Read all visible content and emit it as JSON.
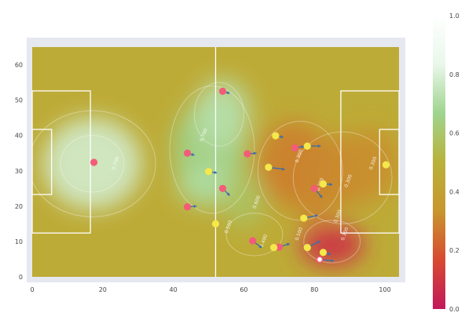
{
  "chart_data": {
    "type": "scatter",
    "title": "",
    "xlabel": "",
    "ylabel": "",
    "xlim": [
      -2,
      104
    ],
    "ylim": [
      -2,
      67
    ],
    "x_ticks": [
      "0",
      "20",
      "40",
      "60",
      "80",
      "100"
    ],
    "x_tick_values": [
      0,
      20,
      40,
      60,
      80,
      100
    ],
    "y_ticks": [
      "0",
      "10",
      "20",
      "30",
      "40",
      "50",
      "60"
    ],
    "y_tick_values": [
      0,
      10,
      20,
      30,
      40,
      50,
      60
    ],
    "pitch": {
      "length": 104,
      "width": 65,
      "halfway_x": 52,
      "penalty_box_depth": 16.5,
      "penalty_box_y": [
        12.4,
        52.6
      ],
      "goal_area_depth": 5.5,
      "goal_area_y": [
        23.3,
        41.7
      ],
      "line_color": "#ffffff"
    },
    "heatmap": {
      "colorscale": [
        "#c2185b",
        "#d84a32",
        "#c8962e",
        "#b9b23a",
        "#9fd48e",
        "#e9f7ea",
        "#ffffff"
      ],
      "cmin": 0,
      "cmax": 1,
      "background_value": 0.46,
      "colorbar_ticks": [
        "0.0",
        "0.2",
        "0.4",
        "0.6",
        "0.8",
        "1.0"
      ],
      "colorbar_tick_values": [
        0,
        0.2,
        0.4,
        0.6,
        0.8,
        1.0
      ]
    },
    "contour_labels": [
      {
        "text": "0.700",
        "x": 24,
        "y": 32
      },
      {
        "text": "0.700",
        "x": 49,
        "y": 40
      },
      {
        "text": "0.600",
        "x": 64,
        "y": 21
      },
      {
        "text": "0.500",
        "x": 56,
        "y": 14
      },
      {
        "text": "0.400",
        "x": 66,
        "y": 10
      },
      {
        "text": "0.500",
        "x": 76,
        "y": 12
      },
      {
        "text": "0.300",
        "x": 76,
        "y": 34
      },
      {
        "text": "0.300",
        "x": 82,
        "y": 26
      },
      {
        "text": "0.300",
        "x": 90,
        "y": 27
      },
      {
        "text": "0.300",
        "x": 97,
        "y": 32
      },
      {
        "text": "0.300",
        "x": 87,
        "y": 17
      },
      {
        "text": "0.300",
        "x": 89,
        "y": 12
      }
    ],
    "series": [
      {
        "color": "#f25c78",
        "points": [
          {
            "x": 17.5,
            "y": 32.4,
            "dx": 0,
            "dy": 0
          },
          {
            "x": 54,
            "y": 52.5,
            "dx": 2.0,
            "dy": -0.6
          },
          {
            "x": 44,
            "y": 35,
            "dx": 2.0,
            "dy": -0.6
          },
          {
            "x": 54,
            "y": 25,
            "dx": 2.0,
            "dy": -2.0
          },
          {
            "x": 44,
            "y": 19.8,
            "dx": 2.6,
            "dy": 0.2
          },
          {
            "x": 61,
            "y": 34.8,
            "dx": 2.6,
            "dy": 0.2
          },
          {
            "x": 62.5,
            "y": 10.2,
            "dx": 2.6,
            "dy": -2.0
          },
          {
            "x": 70,
            "y": 8.4,
            "dx": 3.0,
            "dy": 1.0
          },
          {
            "x": 74.5,
            "y": 36.5,
            "dx": 2.6,
            "dy": 0.4
          },
          {
            "x": 80,
            "y": 25,
            "dx": 2.2,
            "dy": -2.6
          }
        ]
      },
      {
        "color": "#f5e84a",
        "points": [
          {
            "x": 100.3,
            "y": 31.7,
            "dx": 0,
            "dy": 0
          },
          {
            "x": 50,
            "y": 29.8,
            "dx": 2.4,
            "dy": -0.4
          },
          {
            "x": 52,
            "y": 15,
            "dx": 0,
            "dy": 0
          },
          {
            "x": 69,
            "y": 39.9,
            "dx": 2.2,
            "dy": -0.4
          },
          {
            "x": 67,
            "y": 31,
            "dx": 4.6,
            "dy": -0.6
          },
          {
            "x": 78,
            "y": 37,
            "dx": 3.8,
            "dy": 0
          },
          {
            "x": 82.5,
            "y": 26.3,
            "dx": 2.6,
            "dy": -0.2
          },
          {
            "x": 77,
            "y": 16.6,
            "dx": 4.0,
            "dy": 0.8
          },
          {
            "x": 68.5,
            "y": 8.3,
            "dx": 0,
            "dy": 0
          },
          {
            "x": 78,
            "y": 8.3,
            "dx": 3.6,
            "dy": 1.8
          },
          {
            "x": 82.5,
            "y": 6.9,
            "dx": 2.2,
            "dy": -0.6
          }
        ]
      },
      {
        "color": "#ffffff",
        "points": [
          {
            "x": 81.5,
            "y": 4.9,
            "dx": 4.0,
            "dy": -0.4
          }
        ]
      }
    ]
  }
}
